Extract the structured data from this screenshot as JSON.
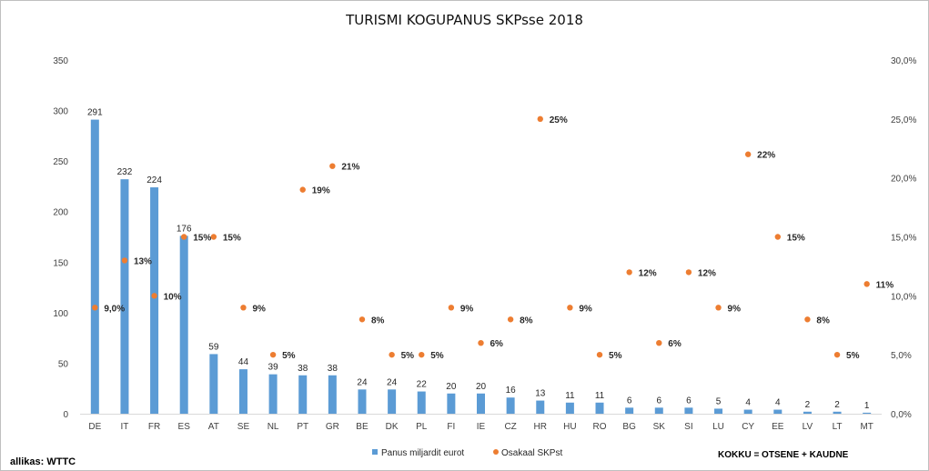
{
  "chart_data": {
    "type": "bar",
    "title": "TURISMI KOGUPANUS SKPsse 2018",
    "categories": [
      "DE",
      "IT",
      "FR",
      "ES",
      "AT",
      "SE",
      "NL",
      "PT",
      "GR",
      "BE",
      "DK",
      "PL",
      "FI",
      "IE",
      "CZ",
      "HR",
      "HU",
      "RO",
      "BG",
      "SK",
      "SI",
      "LU",
      "CY",
      "EE",
      "LV",
      "LT",
      "MT"
    ],
    "series": [
      {
        "name": "Panus miljardit eurot",
        "kind": "bar",
        "axis": "left",
        "color": "#5b9bd5",
        "values": [
          291,
          232,
          224,
          176,
          59,
          44,
          39,
          38,
          38,
          24,
          24,
          22,
          20,
          20,
          16,
          13,
          11,
          11,
          6,
          6,
          6,
          5,
          4,
          4,
          2,
          2,
          1
        ],
        "labels": [
          "291",
          "232",
          "224",
          "176",
          "59",
          "44",
          "39",
          "38",
          "38",
          "24",
          "24",
          "22",
          "20",
          "20",
          "16",
          "13",
          "11",
          "11",
          "6",
          "6",
          "6",
          "5",
          "4",
          "4",
          "2",
          "2",
          "1"
        ]
      },
      {
        "name": "Osakaal SKPst",
        "kind": "scatter",
        "axis": "right",
        "color": "#ed7d31",
        "values": [
          9.0,
          13,
          10,
          15,
          15,
          9,
          5,
          19,
          21,
          8,
          5,
          5,
          9,
          6,
          8,
          25,
          9,
          5,
          12,
          6,
          12,
          9,
          22,
          15,
          8,
          5,
          11
        ],
        "labels": [
          "9,0%",
          "13%",
          "10%",
          "15%",
          "15%",
          "9%",
          "5%",
          "19%",
          "21%",
          "8%",
          "5%",
          "5%",
          "9%",
          "6%",
          "8%",
          "25%",
          "9%",
          "5%",
          "12%",
          "6%",
          "12%",
          "9%",
          "22%",
          "15%",
          "8%",
          "5%",
          "11%"
        ]
      }
    ],
    "y_left": {
      "min": 0,
      "max": 350,
      "ticks": [
        "0",
        "50",
        "100",
        "150",
        "200",
        "250",
        "300",
        "350"
      ]
    },
    "y_right": {
      "min": 0,
      "max": 30,
      "ticks": [
        "0,0%",
        "5,0%",
        "10,0%",
        "15,0%",
        "20,0%",
        "25,0%",
        "30,0%"
      ]
    },
    "grid": false,
    "legend_position": "bottom"
  },
  "note": "KOKKU = OTSENE + KAUDNE",
  "source": "allikas: WTTC"
}
